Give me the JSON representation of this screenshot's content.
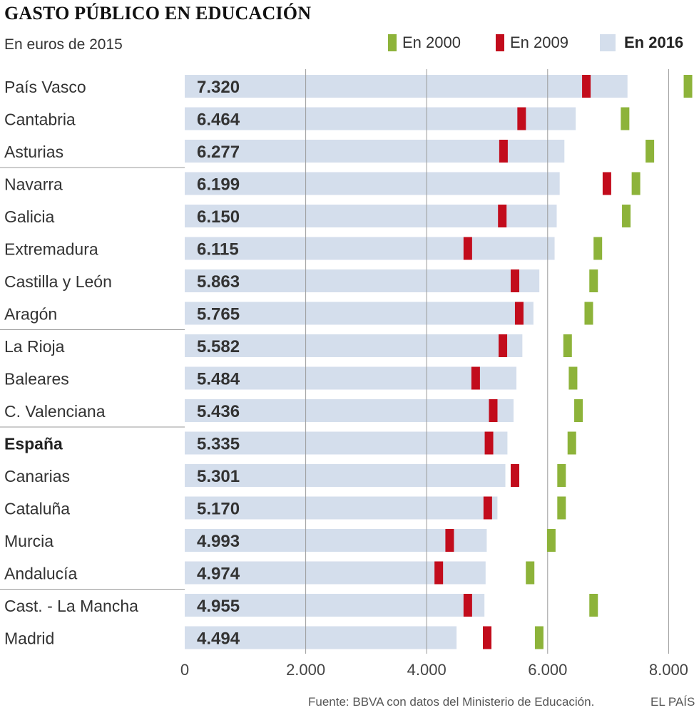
{
  "title": "GASTO PÚBLICO EN EDUCACIÓN",
  "subtitle": "En euros de 2015",
  "legend": [
    {
      "label": "En 2000",
      "color": "#8db33a",
      "bold": false
    },
    {
      "label": "En 2009",
      "color": "#c20c1c",
      "bold": false
    },
    {
      "label": "En 2016",
      "color": "#d4deec",
      "bold": true
    }
  ],
  "source": "Fuente: BBVA con datos del Ministerio de Educación.",
  "brand": "EL PAÍS",
  "chart_data": {
    "type": "bar",
    "orientation": "horizontal",
    "title": "GASTO PÚBLICO EN EDUCACIÓN",
    "subtitle": "En euros de 2015",
    "xlim": [
      0,
      8500
    ],
    "xticks": [
      0,
      2000,
      4000,
      6000,
      8000
    ],
    "xtick_labels": [
      "0",
      "2.000",
      "4.000",
      "6.000",
      "8.000"
    ],
    "grid": true,
    "categories": [
      "País Vasco",
      "Cantabria",
      "Asturias",
      "Navarra",
      "Galicia",
      "Extremadura",
      "Castilla y León",
      "Aragón",
      "La Rioja",
      "Baleares",
      "C. Valenciana",
      "España",
      "Canarias",
      "Cataluña",
      "Murcia",
      "Andalucía",
      "Cast. - La Mancha",
      "Madrid"
    ],
    "bold_categories": [
      "España"
    ],
    "group_separators_after": [
      "Asturias",
      "Aragón",
      "C. Valenciana",
      "Andalucía"
    ],
    "series": [
      {
        "name": "En 2016",
        "display": "bar",
        "color": "#d4deec",
        "values": [
          7320,
          6464,
          6277,
          6199,
          6150,
          6115,
          5863,
          5765,
          5582,
          5484,
          5436,
          5335,
          5301,
          5170,
          4993,
          4974,
          4955,
          4494
        ]
      },
      {
        "name": "En 2009",
        "display": "marker",
        "color": "#c20c1c",
        "values": [
          6640,
          5570,
          5270,
          6980,
          5250,
          4680,
          5460,
          5530,
          5260,
          4810,
          5100,
          5030,
          5460,
          5010,
          4380,
          4200,
          4680,
          5000
        ]
      },
      {
        "name": "En 2000",
        "display": "marker",
        "color": "#8db33a",
        "values": [
          8320,
          7280,
          7690,
          7460,
          7300,
          6830,
          6760,
          6680,
          6330,
          6420,
          6510,
          6400,
          6230,
          6230,
          6060,
          5710,
          6760,
          5860
        ]
      }
    ],
    "value_labels": [
      "7.320",
      "6.464",
      "6.277",
      "6.199",
      "6.150",
      "6.115",
      "5.863",
      "5.765",
      "5.582",
      "5.484",
      "5.436",
      "5.335",
      "5.301",
      "5.170",
      "4.993",
      "4.974",
      "4.955",
      "4.494"
    ]
  }
}
